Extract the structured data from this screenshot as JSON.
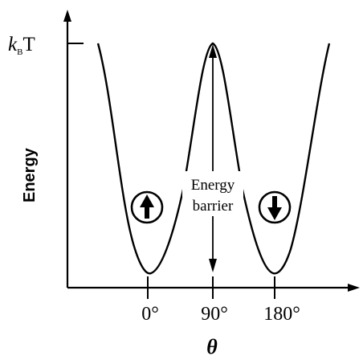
{
  "y_axis": {
    "label": "Energy",
    "tick_label_k": "k",
    "tick_label_sub": "B",
    "tick_label_T": "T"
  },
  "x_axis": {
    "label": "θ",
    "ticks": [
      "0°",
      "90°",
      "180°"
    ]
  },
  "annotation": {
    "line1": "Energy",
    "line2": "barrier"
  },
  "states": [
    {
      "name": "spin-up",
      "direction": "up"
    },
    {
      "name": "spin-down",
      "direction": "down"
    }
  ]
}
